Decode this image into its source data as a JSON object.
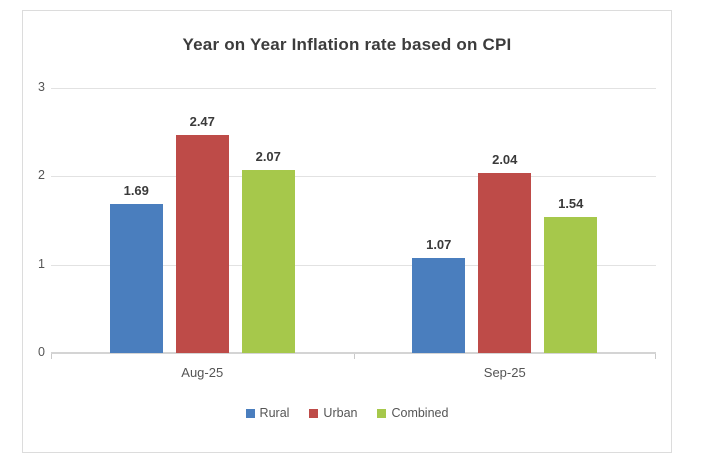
{
  "chart_data": {
    "type": "bar",
    "title": "Year on Year Inflation rate based on CPI",
    "categories": [
      "Aug-25",
      "Sep-25"
    ],
    "series": [
      {
        "name": "Rural",
        "color": "#4a7ebe",
        "values": [
          1.69,
          1.07
        ]
      },
      {
        "name": "Urban",
        "color": "#be4b48",
        "values": [
          2.47,
          2.04
        ]
      },
      {
        "name": "Combined",
        "color": "#a6c84b",
        "values": [
          2.07,
          1.54
        ]
      }
    ],
    "value_labels": [
      [
        "1.69",
        "2.47",
        "2.07"
      ],
      [
        "1.07",
        "2.04",
        "1.54"
      ]
    ],
    "xlabel": "",
    "ylabel": "",
    "ylim": [
      0,
      3
    ],
    "yticks": [
      "0",
      "1",
      "2",
      "3"
    ],
    "grid": true,
    "legend_position": "bottom",
    "colors": {
      "title_text": "#3c3c3c",
      "axis_text": "#555555",
      "gridline": "#e2e2e2",
      "frame_border": "#dcdcdc",
      "background": "#ffffff"
    }
  }
}
